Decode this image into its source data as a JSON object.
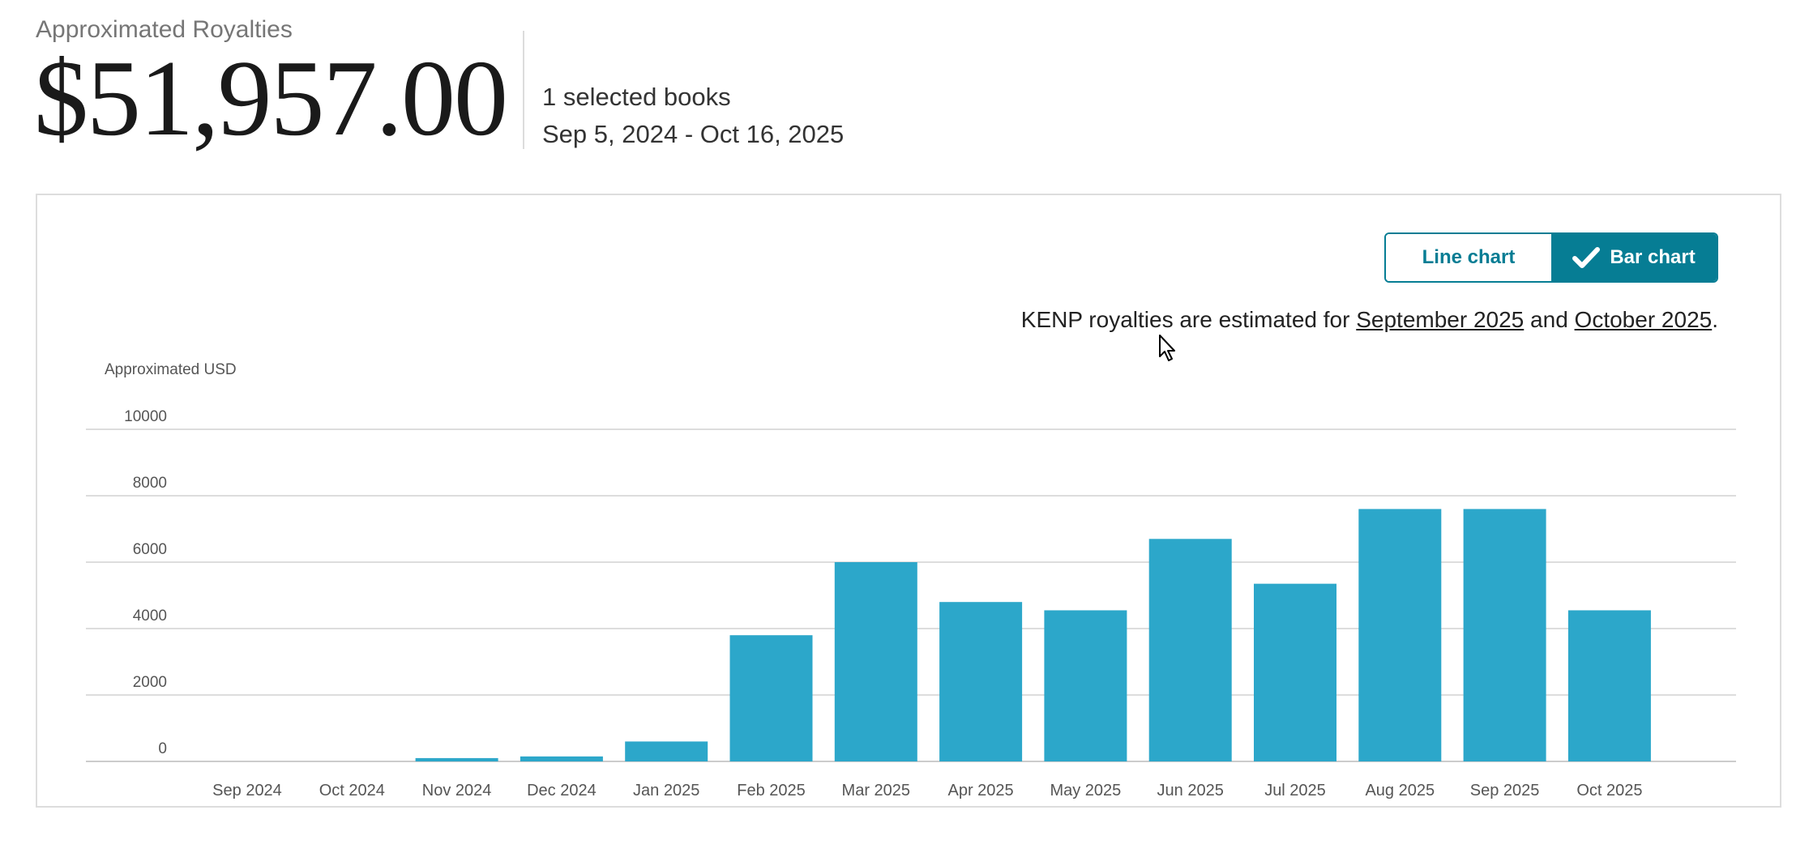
{
  "summary": {
    "label": "Approximated Royalties",
    "amount": "$51,957.00",
    "selected_books": "1 selected books",
    "date_range": "Sep 5, 2024 - Oct 16, 2025"
  },
  "toggle": {
    "line_label": "Line chart",
    "bar_label": "Bar chart",
    "active": "bar",
    "icons": {
      "check": "check-icon"
    }
  },
  "notice": {
    "prefix": "KENP royalties are estimated for ",
    "link1": "September 2025",
    "middle": " and ",
    "link2": "October 2025",
    "suffix": "."
  },
  "colors": {
    "bar": "#2ca7ca",
    "accent": "#067d94",
    "grid": "#dddddd"
  },
  "chart_data": {
    "type": "bar",
    "ylabel": "Approximated USD",
    "ylim": [
      0,
      10000
    ],
    "yticks": [
      0,
      2000,
      4000,
      6000,
      8000,
      10000
    ],
    "grid": true,
    "categories": [
      "Sep 2024",
      "Oct 2024",
      "Nov 2024",
      "Dec 2024",
      "Jan 2025",
      "Feb 2025",
      "Mar 2025",
      "Apr 2025",
      "May 2025",
      "Jun 2025",
      "Jul 2025",
      "Aug 2025",
      "Sep 2025",
      "Oct 2025"
    ],
    "values": [
      0,
      0,
      100,
      150,
      600,
      3800,
      6000,
      4800,
      4550,
      6700,
      5350,
      7600,
      7600,
      4550
    ]
  }
}
